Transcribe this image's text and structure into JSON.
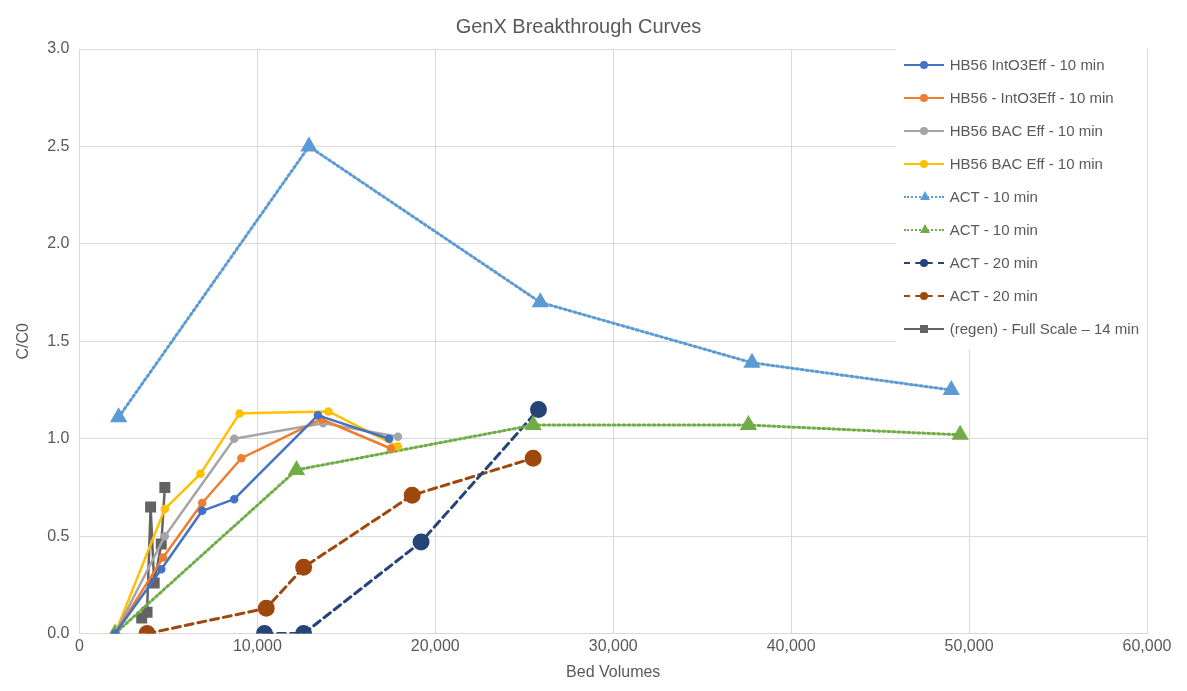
{
  "chart_data": {
    "type": "line",
    "title": "GenX Breakthrough Curves",
    "xlabel": "Bed Volumes",
    "ylabel": "C/C0",
    "xlim": [
      0,
      60000
    ],
    "xticks": [
      0,
      {
        "value": 10000,
        "label": "10,000"
      },
      {
        "value": 20000,
        "label": "20,000"
      },
      {
        "value": 30000,
        "label": "30,000"
      },
      {
        "value": 40000,
        "label": "40,000"
      },
      {
        "value": 50000,
        "label": "50,000"
      },
      {
        "value": 60000,
        "label": "60,000"
      }
    ],
    "ylim": [
      0,
      3
    ],
    "yticks": [
      {
        "value": 0,
        "label": "0.0"
      },
      0.5,
      {
        "value": 1,
        "label": "1.0"
      },
      1.5,
      {
        "value": 2,
        "label": "2.0"
      },
      2.5,
      {
        "value": 3,
        "label": "3.0"
      }
    ],
    "grid": true,
    "legend": "top right",
    "series": [
      {
        "name": "HB56 IntO3Eff - 10 min",
        "color": "#4472c4",
        "marker": "circle",
        "line_style": "solid",
        "x": [
          2000,
          4600,
          6900,
          8700,
          13400,
          17400
        ],
        "values": [
          0,
          0.33,
          0.63,
          0.69,
          1.12,
          1.0
        ]
      },
      {
        "name": "HB56 - IntO3Eff - 10 min",
        "color": "#ed7d31",
        "marker": "circle",
        "line_style": "solid",
        "x": [
          2000,
          4700,
          6900,
          9100,
          13600,
          17500
        ],
        "values": [
          0,
          0.39,
          0.67,
          0.9,
          1.1,
          0.95
        ]
      },
      {
        "name": "HB56 BAC Eff - 10 min",
        "color": "#a5a5a5",
        "marker": "circle",
        "line_style": "solid",
        "x": [
          2000,
          4800,
          8700,
          13700,
          17900
        ],
        "values": [
          0,
          0.5,
          1.0,
          1.08,
          1.01
        ]
      },
      {
        "name": "HB56 BAC Eff - 10 min",
        "color": "#ffc000",
        "marker": "circle",
        "line_style": "solid",
        "x": [
          2000,
          4800,
          6800,
          9000,
          14000,
          17900
        ],
        "values": [
          0,
          0.64,
          0.82,
          1.13,
          1.14,
          0.96
        ]
      },
      {
        "name": "ACT - 10 min",
        "color": "#5b9bd5",
        "marker": "triangle",
        "line_style": "dotted",
        "x": [
          2200,
          12900,
          25900,
          37800,
          49000
        ],
        "values": [
          1.11,
          2.5,
          1.7,
          1.39,
          1.25
        ]
      },
      {
        "name": "ACT - 10 min",
        "color": "#70ad47",
        "marker": "triangle",
        "line_style": "dotted",
        "x": [
          2000,
          12200,
          25500,
          37600,
          49500
        ],
        "values": [
          0,
          0.84,
          1.07,
          1.07,
          1.02
        ]
      },
      {
        "name": "ACT - 20 min",
        "color": "#264478",
        "marker": "circle",
        "line_style": "dashed",
        "x": [
          10400,
          12600,
          19200,
          25800
        ],
        "values": [
          0,
          0,
          0.47,
          1.15
        ]
      },
      {
        "name": "ACT - 20 min",
        "color": "#9e480e",
        "marker": "circle",
        "line_style": "dashed",
        "x": [
          3800,
          10500,
          12600,
          18700,
          25500
        ],
        "values": [
          0,
          0.13,
          0.34,
          0.71,
          0.9
        ]
      },
      {
        "name": "(regen) - Full Scale – 14 min",
        "color": "#636363",
        "marker": "square",
        "line_style": "solid",
        "x": [
          3500,
          3800,
          4000,
          4200,
          4600,
          4800
        ],
        "values": [
          0.08,
          0.11,
          0.65,
          0.26,
          0.46,
          0.75
        ]
      }
    ]
  }
}
